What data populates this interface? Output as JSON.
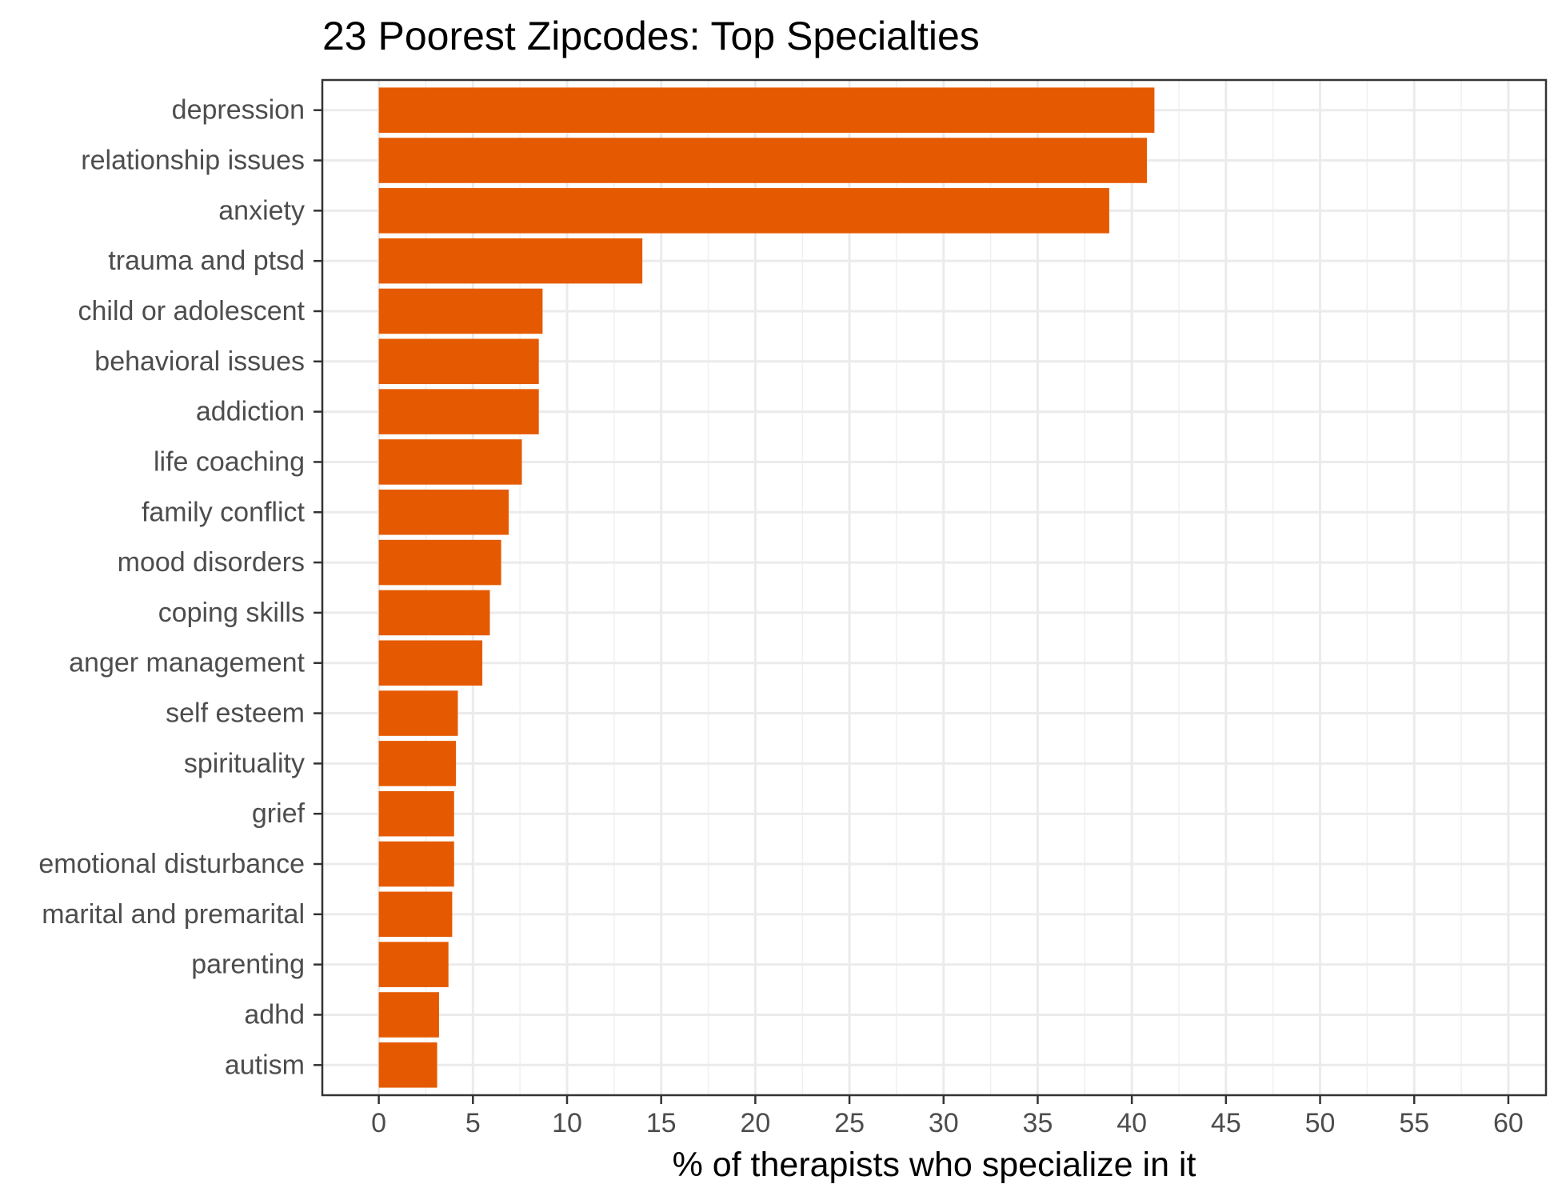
{
  "chart_data": {
    "type": "bar",
    "orientation": "horizontal",
    "title": "23 Poorest Zipcodes: Top Specialties",
    "xlabel": "% of therapists who specialize in it",
    "ylabel": "",
    "xlim": [
      -3,
      62
    ],
    "x_ticks": [
      0,
      5,
      10,
      15,
      20,
      25,
      30,
      35,
      40,
      45,
      50,
      55,
      60
    ],
    "x_tick_labels": [
      "0",
      "5",
      "10",
      "15",
      "20",
      "25",
      "30",
      "35",
      "40",
      "45",
      "50",
      "55",
      "60"
    ],
    "grid": true,
    "bar_color": "#e55a00",
    "categories": [
      "depression",
      "relationship issues",
      "anxiety",
      "trauma and ptsd",
      "child or adolescent",
      "behavioral issues",
      "addiction",
      "life coaching",
      "family conflict",
      "mood disorders",
      "coping skills",
      "anger management",
      "self esteem",
      "spirituality",
      "grief",
      "emotional disturbance",
      "marital and premarital",
      "parenting",
      "adhd",
      "autism"
    ],
    "values": [
      41.2,
      40.8,
      38.8,
      14.0,
      8.7,
      8.5,
      8.5,
      7.6,
      6.9,
      6.5,
      5.9,
      5.5,
      4.2,
      4.1,
      4.0,
      4.0,
      3.9,
      3.7,
      3.2,
      3.1
    ]
  }
}
